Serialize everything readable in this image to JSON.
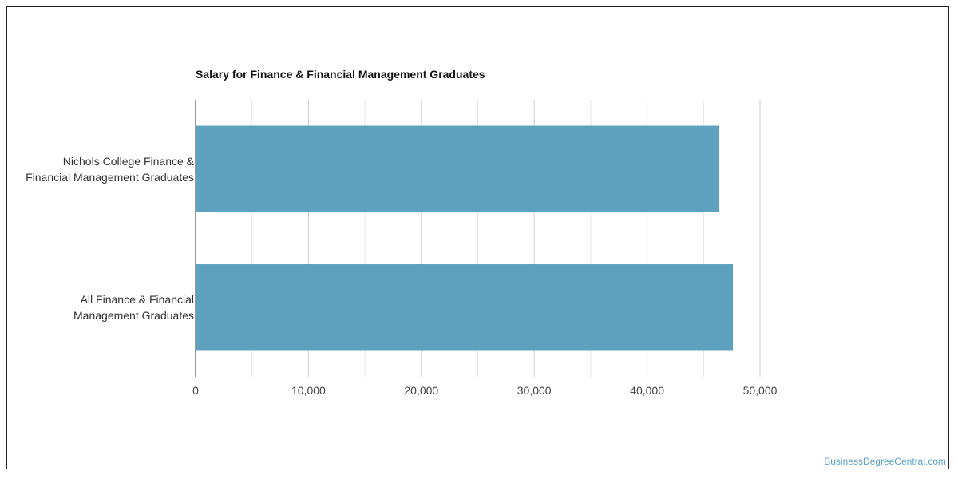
{
  "chart_data": {
    "type": "bar",
    "orientation": "horizontal",
    "title": "Salary for Finance & Financial Management Graduates",
    "categories": [
      "Nichols College Finance & Financial Management Graduates",
      "All Finance & Financial Management Graduates"
    ],
    "category_lines": [
      [
        "Nichols College Finance &",
        "Financial Management Graduates"
      ],
      [
        "All Finance & Financial",
        "Management Graduates"
      ]
    ],
    "values": [
      46400,
      47600
    ],
    "xlim": [
      0,
      50000
    ],
    "xticks": [
      0,
      10000,
      20000,
      30000,
      40000,
      50000
    ],
    "xtick_labels": [
      "0",
      "10,000",
      "20,000",
      "30,000",
      "40,000",
      "50,000"
    ],
    "grid": true,
    "bar_color": "#5ea1be"
  },
  "watermark": "BusinessDegreeCentral.com"
}
